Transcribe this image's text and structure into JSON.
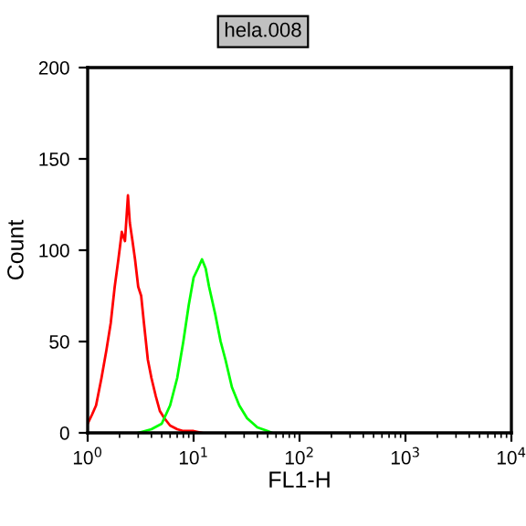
{
  "chart_data": {
    "type": "line",
    "title": "hela.008",
    "xlabel": "FL1-H",
    "ylabel": "Count",
    "log": "x",
    "grid": false,
    "marker": "none",
    "xlim": [
      1,
      10000
    ],
    "ylim": [
      0,
      200
    ],
    "xticks": [
      {
        "value": 1,
        "label": "10$^{0}$"
      },
      {
        "value": 10,
        "label": "10$^{1}$"
      },
      {
        "value": 100,
        "label": "10$^{2}$"
      },
      {
        "value": 1000,
        "label": "10$^{3}$"
      },
      {
        "value": 10000,
        "label": "10$^{4}$"
      }
    ],
    "yticks": [
      0,
      50,
      100,
      150,
      200
    ],
    "series": [
      {
        "color": "#ff0000",
        "x": [
          1.0,
          1.1,
          1.2,
          1.35,
          1.5,
          1.65,
          1.8,
          1.95,
          2.1,
          2.25,
          2.4,
          2.5,
          2.65,
          2.8,
          3.0,
          3.2,
          3.4,
          3.7,
          4.0,
          4.4,
          4.8,
          5.3,
          6,
          7,
          8,
          10,
          12
        ],
        "values": [
          5,
          10,
          15,
          30,
          45,
          60,
          80,
          95,
          110,
          105,
          130,
          115,
          105,
          95,
          80,
          75,
          60,
          40,
          30,
          20,
          12,
          8,
          4,
          2,
          1,
          1,
          0
        ]
      },
      {
        "color": "#00ff00",
        "x": [
          3,
          4,
          5,
          6,
          7,
          8,
          9,
          10,
          11,
          12,
          13,
          14,
          16,
          18,
          20,
          23,
          27,
          32,
          40,
          50,
          55
        ],
        "values": [
          0,
          2,
          5,
          15,
          30,
          50,
          70,
          85,
          90,
          95,
          90,
          80,
          65,
          50,
          40,
          25,
          15,
          8,
          3,
          1,
          0
        ]
      }
    ]
  }
}
